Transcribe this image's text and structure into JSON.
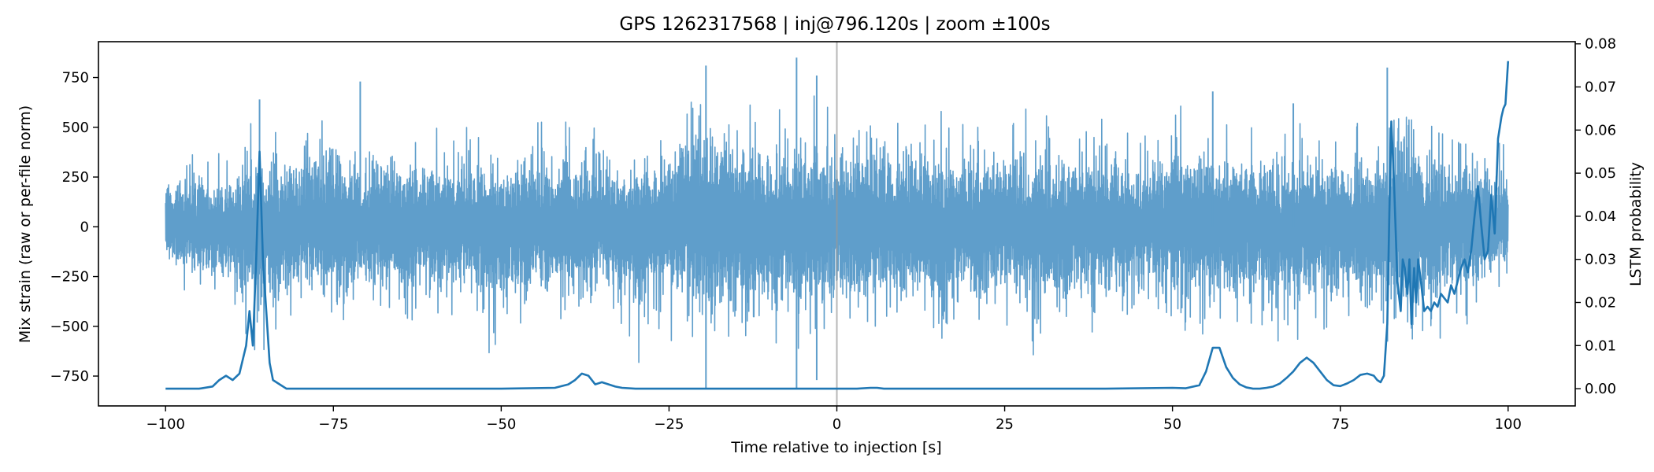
{
  "chart_data": {
    "type": "line",
    "title": "GPS 1262317568 | inj@796.120s | zoom ±100s",
    "xlabel": "Time relative to injection [s]",
    "ylabel_left": "Mix strain (raw or per-file norm)",
    "ylabel_right": "LSTM probability",
    "xlim": [
      -110,
      110
    ],
    "ylim_left": [
      -900,
      930
    ],
    "ylim_right": [
      -0.004,
      0.0805
    ],
    "x_ticks": [
      -100,
      -75,
      -50,
      -25,
      0,
      25,
      50,
      75,
      100
    ],
    "x_tick_labels": [
      "−100",
      "−75",
      "−50",
      "−25",
      "0",
      "25",
      "50",
      "75",
      "100"
    ],
    "y_left_ticks": [
      -750,
      -500,
      -250,
      0,
      250,
      500,
      750
    ],
    "y_left_tick_labels": [
      "−750",
      "−500",
      "−250",
      "0",
      "250",
      "500",
      "750"
    ],
    "y_right_ticks": [
      0.0,
      0.01,
      0.02,
      0.03,
      0.04,
      0.05,
      0.06,
      0.07,
      0.08
    ],
    "y_right_tick_labels": [
      "0.00",
      "0.01",
      "0.02",
      "0.03",
      "0.04",
      "0.05",
      "0.06",
      "0.07",
      "0.08"
    ],
    "grid": false,
    "injection_marker_x": 0,
    "series": [
      {
        "axis": "left",
        "color": "#5f9ecb",
        "envelope": {
          "x": [
            -100,
            -95,
            -90,
            -87,
            -85,
            -80,
            -75,
            -70,
            -65,
            -60,
            -55,
            -50,
            -45,
            -40,
            -35,
            -30,
            -25,
            -20,
            -15,
            -10,
            -5,
            0,
            5,
            10,
            15,
            20,
            25,
            30,
            35,
            40,
            45,
            50,
            55,
            60,
            65,
            70,
            75,
            80,
            85,
            90,
            95,
            100
          ],
          "upper": [
            350,
            450,
            470,
            640,
            550,
            580,
            730,
            520,
            540,
            560,
            620,
            500,
            560,
            620,
            540,
            520,
            640,
            800,
            640,
            620,
            850,
            680,
            640,
            610,
            660,
            620,
            620,
            610,
            580,
            620,
            500,
            700,
            580,
            620,
            560,
            640,
            540,
            620,
            800,
            560,
            520,
            500
          ],
          "lower": [
            -260,
            -460,
            -480,
            -680,
            -740,
            -520,
            -700,
            -520,
            -600,
            -540,
            -520,
            -720,
            -600,
            -520,
            -500,
            -740,
            -600,
            -810,
            -640,
            -620,
            -810,
            -580,
            -590,
            -600,
            -620,
            -680,
            -620,
            -700,
            -620,
            -640,
            -560,
            -580,
            -590,
            -620,
            -700,
            -600,
            -560,
            -640,
            -700,
            -620,
            -520,
            -280
          ]
        },
        "spikes": [
          {
            "x": -86,
            "value": 640
          },
          {
            "x": -71,
            "value": 730
          },
          {
            "x": -19.5,
            "value": 810
          },
          {
            "x": -19.5,
            "value": -810
          },
          {
            "x": -6,
            "value": 850
          },
          {
            "x": -6,
            "value": -810
          },
          {
            "x": -3,
            "value": 760
          },
          {
            "x": -3,
            "value": -770
          },
          {
            "x": 56,
            "value": 680
          },
          {
            "x": 68,
            "value": 620
          },
          {
            "x": 82,
            "value": 800
          }
        ]
      },
      {
        "axis": "right",
        "color": "#1f77b4",
        "x": [
          -100,
          -97,
          -95,
          -93,
          -92,
          -91,
          -90,
          -89,
          -88,
          -87.5,
          -87,
          -86.5,
          -86,
          -85.5,
          -85,
          -84.5,
          -84,
          -83,
          -82,
          -80,
          -70,
          -60,
          -50,
          -42,
          -40,
          -39,
          -38,
          -37,
          -36,
          -35,
          -34,
          -33,
          -32,
          -30,
          -25,
          -20,
          -10,
          0,
          3,
          5,
          6,
          7,
          8,
          10,
          20,
          30,
          40,
          50,
          52,
          54,
          55,
          56,
          57,
          58,
          59,
          60,
          61,
          62,
          63,
          64,
          65,
          66,
          67,
          68,
          69,
          70,
          71,
          72,
          73,
          74,
          75,
          76,
          77,
          78,
          79,
          80,
          80.5,
          81,
          81.5,
          82,
          82.3,
          82.6,
          83,
          83.5,
          84,
          84.3,
          84.6,
          85,
          85.3,
          85.6,
          86,
          86.3,
          86.6,
          87,
          87.5,
          88,
          88.5,
          89,
          89.5,
          90,
          90.5,
          91,
          91.5,
          92,
          92.5,
          93,
          93.5,
          94,
          94.5,
          95,
          95.5,
          96,
          96.5,
          97,
          97.5,
          98,
          98.5,
          99,
          99.3,
          99.6,
          100
        ],
        "y": [
          0.0,
          0.0,
          0.0,
          0.0005,
          0.002,
          0.003,
          0.002,
          0.0035,
          0.01,
          0.018,
          0.01,
          0.03,
          0.055,
          0.03,
          0.018,
          0.006,
          0.002,
          0.001,
          0.0,
          0.0,
          0.0,
          0.0,
          0.0,
          0.0002,
          0.001,
          0.002,
          0.0035,
          0.003,
          0.001,
          0.0015,
          0.001,
          0.0005,
          0.0002,
          0.0,
          0.0,
          0.0,
          0.0,
          0.0,
          0.0,
          0.0002,
          0.0002,
          0.0,
          0.0,
          0.0,
          0.0,
          0.0,
          0.0,
          0.0002,
          0.0001,
          0.0008,
          0.004,
          0.0095,
          0.0095,
          0.005,
          0.0025,
          0.001,
          0.0003,
          0.0,
          0.0,
          0.0002,
          0.0005,
          0.0012,
          0.0025,
          0.004,
          0.006,
          0.0072,
          0.006,
          0.004,
          0.002,
          0.0008,
          0.0006,
          0.0012,
          0.002,
          0.0032,
          0.0035,
          0.003,
          0.002,
          0.0015,
          0.003,
          0.015,
          0.04,
          0.062,
          0.048,
          0.025,
          0.018,
          0.03,
          0.028,
          0.022,
          0.03,
          0.015,
          0.028,
          0.02,
          0.03,
          0.025,
          0.018,
          0.019,
          0.018,
          0.02,
          0.019,
          0.022,
          0.021,
          0.02,
          0.024,
          0.022,
          0.025,
          0.028,
          0.03,
          0.027,
          0.032,
          0.04,
          0.047,
          0.038,
          0.03,
          0.032,
          0.045,
          0.036,
          0.058,
          0.063,
          0.065,
          0.066,
          0.076
        ]
      }
    ]
  }
}
